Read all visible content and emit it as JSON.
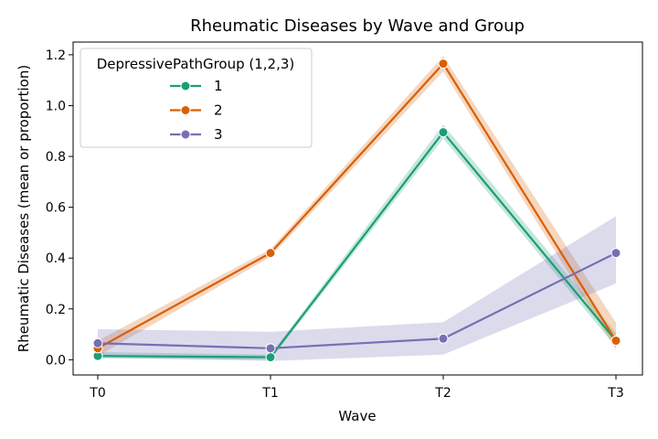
{
  "chart_data": {
    "type": "line",
    "title": "Rheumatic Diseases by Wave and Group",
    "xlabel": "Wave",
    "ylabel": "Rheumatic Diseases (mean or proportion)",
    "categories": [
      "T0",
      "T1",
      "T2",
      "T3"
    ],
    "ylim": [
      -0.06,
      1.25
    ],
    "yticks": [
      0.0,
      0.2,
      0.4,
      0.6,
      0.8,
      1.0,
      1.2
    ],
    "ytick_labels": [
      "0.0",
      "0.2",
      "0.4",
      "0.6",
      "0.8",
      "1.0",
      "1.2"
    ],
    "grid": false,
    "legend": {
      "title": "DepressivePathGroup (1,2,3)",
      "placement": "top-left"
    },
    "series": [
      {
        "name": "1",
        "color": "#1b9e77",
        "values": [
          0.015,
          0.01,
          0.895,
          0.075
        ],
        "ci_low": [
          0.005,
          0.0,
          0.87,
          0.05
        ],
        "ci_high": [
          0.03,
          0.02,
          0.925,
          0.105
        ]
      },
      {
        "name": "2",
        "color": "#d95f02",
        "values": [
          0.045,
          0.42,
          1.165,
          0.075
        ],
        "ci_low": [
          0.015,
          0.405,
          1.135,
          0.04
        ],
        "ci_high": [
          0.075,
          0.435,
          1.195,
          0.145
        ]
      },
      {
        "name": "3",
        "color": "#7570b3",
        "values": [
          0.065,
          0.045,
          0.083,
          0.42
        ],
        "ci_low": [
          0.01,
          -0.005,
          0.02,
          0.3
        ],
        "ci_high": [
          0.12,
          0.11,
          0.148,
          0.565
        ]
      }
    ]
  }
}
